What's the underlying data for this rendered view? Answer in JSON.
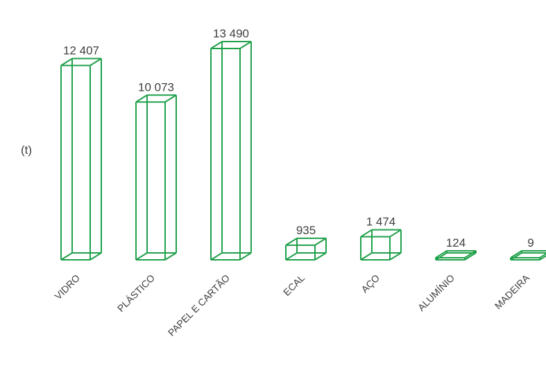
{
  "chart_data": {
    "type": "bar",
    "ylabel": "(t)",
    "categories": [
      "VIDRO",
      "PLÁSTICO",
      "PAPEL E CARTÃO",
      "ECAL",
      "AÇO",
      "ALUMÍNIO",
      "MADEIRA"
    ],
    "values": [
      12407,
      10073,
      13490,
      935,
      1474,
      124,
      9
    ],
    "value_labels": [
      "12 407",
      "10 073",
      "13 490",
      "935",
      "1 474",
      "124",
      "9"
    ],
    "color": "#1fa04a",
    "grid": false,
    "legend": "none"
  }
}
